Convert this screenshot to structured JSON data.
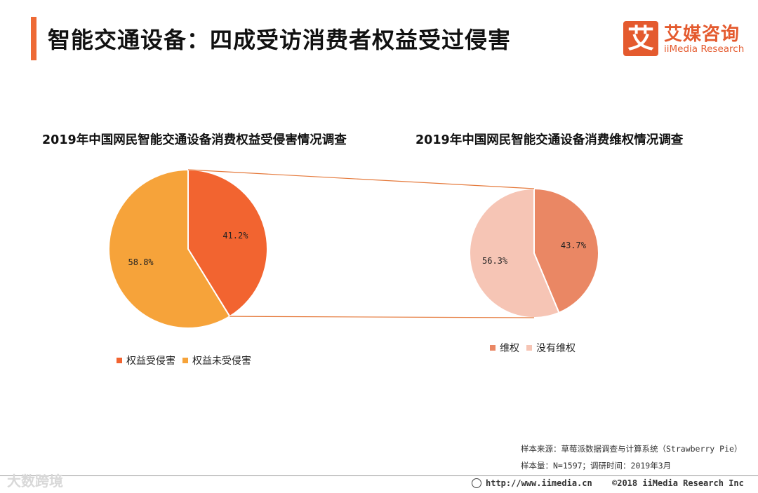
{
  "header": {
    "title": "智能交通设备：四成受访消费者权益受过侵害",
    "accent_color": "#ee6a35"
  },
  "logo": {
    "mark": "艾",
    "name_cn": "艾媒咨询",
    "name_en": "iiMedia Research",
    "color": "#e45a2e"
  },
  "chart_data": [
    {
      "type": "pie",
      "title": "2019年中国网民智能交通设备消费权益受侵害情况调查",
      "slices": [
        {
          "label": "权益受侵害",
          "value": 41.2,
          "display": "41.2%",
          "color": "#f26430"
        },
        {
          "label": "权益未受侵害",
          "value": 58.8,
          "display": "58.8%",
          "color": "#f6a33a"
        }
      ],
      "legend_position": "bottom-center"
    },
    {
      "type": "pie",
      "title": "2019年中国网民智能交通设备消费维权情况调查",
      "slices": [
        {
          "label": "维权",
          "value": 43.7,
          "display": "43.7%",
          "color": "#ea8764"
        },
        {
          "label": "没有维权",
          "value": 56.3,
          "display": "56.3%",
          "color": "#f6c5b5"
        }
      ],
      "legend_position": "bottom-center",
      "breakout_of": "权益受侵害",
      "connector_color": "#e57a3c"
    }
  ],
  "source": {
    "line1": "样本来源：草莓派数据调查与计算系统（Strawberry Pie）",
    "line2": "样本量：N=1597；调研时间：2019年3月"
  },
  "footer": {
    "url": "http://www.iimedia.cn",
    "copyright": "©2018  iiMedia Research  Inc"
  },
  "watermark": {
    "text": "大数跨境"
  }
}
